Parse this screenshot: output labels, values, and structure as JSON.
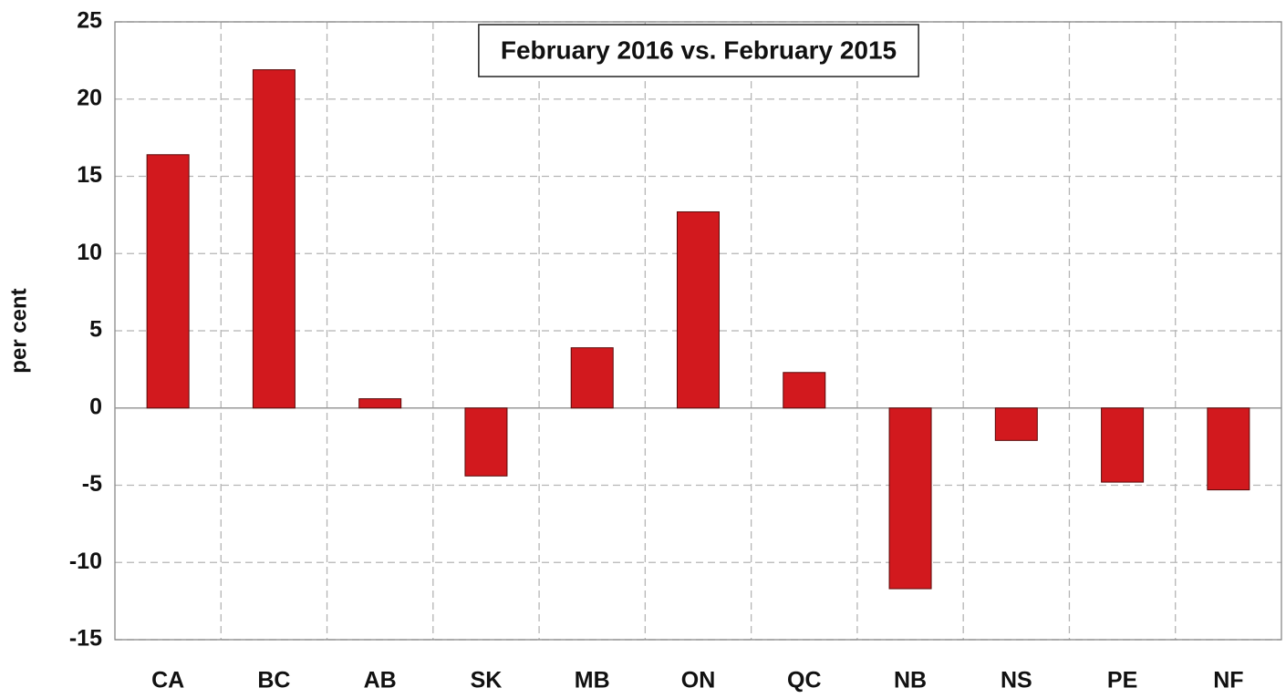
{
  "chart_data": {
    "type": "bar",
    "title": "February 2016 vs. February 2015",
    "y_label": "per cent",
    "categories": [
      "CA",
      "BC",
      "AB",
      "SK",
      "MB",
      "ON",
      "QC",
      "NB",
      "NS",
      "PE",
      "NF"
    ],
    "values": [
      16.4,
      21.9,
      0.6,
      -4.4,
      3.9,
      12.7,
      2.3,
      -11.7,
      -2.1,
      -4.8,
      -5.3
    ],
    "color": "#d2191e",
    "ylim": [
      -15,
      25
    ],
    "yticks": [
      -15,
      -10,
      -5,
      0,
      5,
      10,
      15,
      20,
      25
    ],
    "grid": true
  }
}
